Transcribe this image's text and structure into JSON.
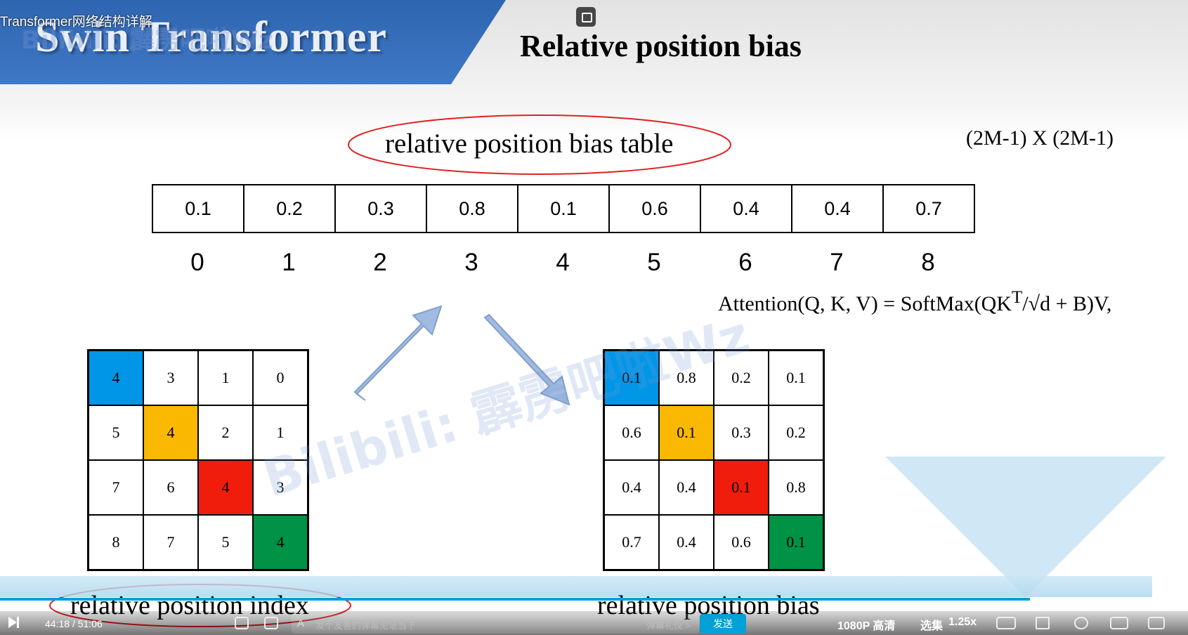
{
  "player": {
    "video_title": "Transformer网络结构详解",
    "current_time": "44:18",
    "separator": "/",
    "duration": "51:06",
    "progress_fraction": 0.867,
    "danmaku_placeholder": "发个友善的弹幕见证当下",
    "danmaku_etiquette": "弹幕礼仪 >",
    "send_label": "发送",
    "quality_label": "1080P 高清",
    "episodes_label": "选集",
    "speed_label": "1.25x",
    "accent_color": "#00a1d6",
    "icons": [
      "play-icon",
      "danmaku-toggle-icon",
      "danmaku-settings-icon",
      "danmaku-input-icon",
      "subtitle-off-icon",
      "volume-icon",
      "settings-icon",
      "pip-icon",
      "widescreen-icon",
      "fullscreen-icon"
    ]
  },
  "slide": {
    "banner_title": "Swin Transformer",
    "heading": "Relative position bias",
    "table_title": "relative position bias table",
    "dimension_label": "(2M-1) X (2M-1)",
    "bias_values": [
      "0.1",
      "0.2",
      "0.3",
      "0.8",
      "0.1",
      "0.6",
      "0.4",
      "0.4",
      "0.7"
    ],
    "bias_indices": [
      "0",
      "1",
      "2",
      "3",
      "4",
      "5",
      "6",
      "7",
      "8"
    ],
    "formula": {
      "lhs": "Attention(Q, K, V) = ",
      "rhs": "SoftMax(QK",
      "sup": "T",
      "tail": "/√d + B)V,"
    },
    "left_label": "relative position index",
    "right_label": "relative position bias",
    "watermark": "Bilibili: 霹雳吧啦Wz",
    "index_grid": [
      [
        "4",
        "3",
        "1",
        "0"
      ],
      [
        "5",
        "4",
        "2",
        "1"
      ],
      [
        "7",
        "6",
        "4",
        "3"
      ],
      [
        "8",
        "7",
        "5",
        "4"
      ]
    ],
    "bias_grid": [
      [
        "0.1",
        "0.8",
        "0.2",
        "0.1"
      ],
      [
        "0.6",
        "0.1",
        "0.3",
        "0.2"
      ],
      [
        "0.4",
        "0.4",
        "0.1",
        "0.8"
      ],
      [
        "0.7",
        "0.4",
        "0.6",
        "0.1"
      ]
    ],
    "highlight_colors": [
      "#0096e8",
      "#fbb800",
      "#f11d0c",
      "#009245"
    ]
  }
}
